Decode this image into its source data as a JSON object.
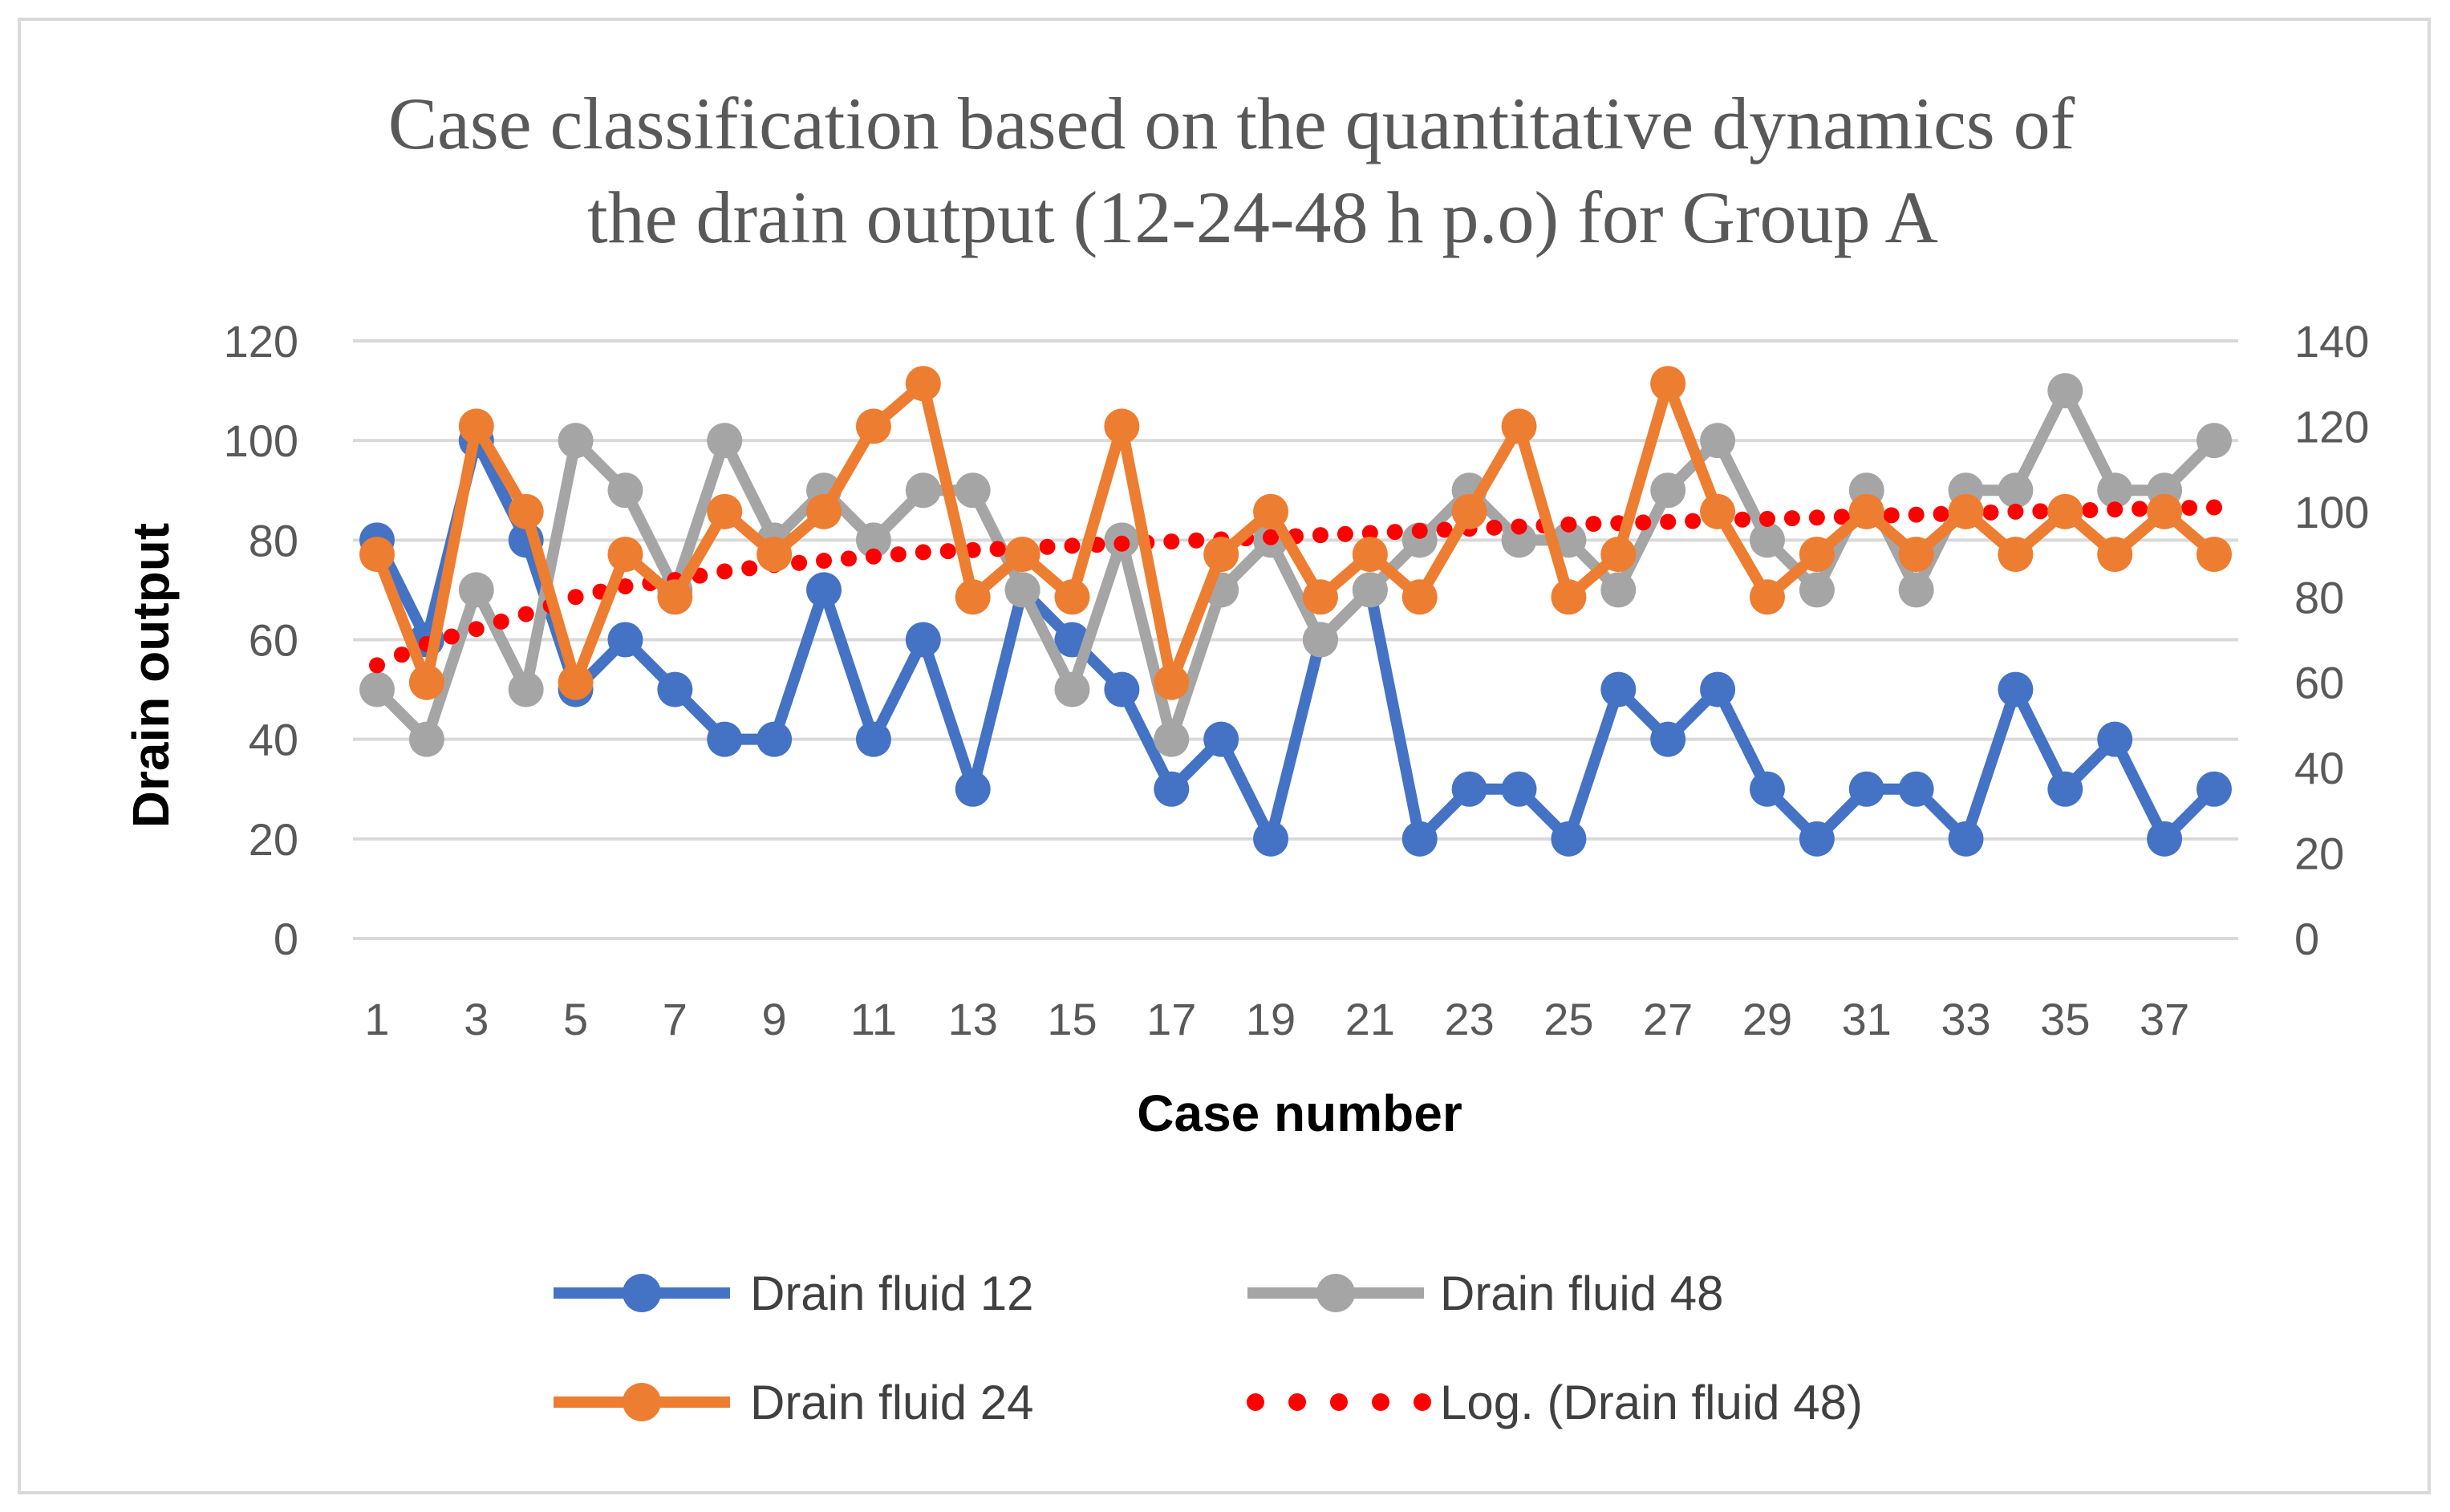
{
  "chart_data": {
    "type": "line",
    "title_lines": [
      "Case classification based on the quantitative dynamics of",
      "the drain output (12-24-48 h p.o) for Group A"
    ],
    "xlabel": "Case number",
    "ylabel": "Drain output",
    "x": [
      1,
      2,
      3,
      4,
      5,
      6,
      7,
      8,
      9,
      10,
      11,
      12,
      13,
      14,
      15,
      16,
      17,
      18,
      19,
      20,
      21,
      22,
      23,
      24,
      25,
      26,
      27,
      28,
      29,
      30,
      31,
      32,
      33,
      34,
      35,
      36,
      37,
      38
    ],
    "x_tick_labels": [
      "1",
      "3",
      "5",
      "7",
      "9",
      "11",
      "13",
      "15",
      "17",
      "19",
      "21",
      "23",
      "25",
      "27",
      "29",
      "31",
      "33",
      "35",
      "37"
    ],
    "y_left": {
      "min": 0,
      "max": 120,
      "step": 20,
      "ticks": [
        "0",
        "20",
        "40",
        "60",
        "80",
        "100",
        "120"
      ]
    },
    "y_right": {
      "min": 0,
      "max": 140,
      "step": 20,
      "ticks": [
        "0",
        "20",
        "40",
        "60",
        "80",
        "100",
        "120",
        "140"
      ]
    },
    "grid": true,
    "legend_position": "bottom",
    "series": [
      {
        "name": "Drain fluid 12",
        "axis": "left",
        "color": "#4472c4",
        "style": "line-marker",
        "values": [
          80,
          60,
          100,
          80,
          50,
          60,
          50,
          40,
          40,
          70,
          40,
          60,
          30,
          70,
          60,
          50,
          30,
          40,
          20,
          60,
          70,
          20,
          30,
          30,
          20,
          50,
          40,
          50,
          30,
          20,
          30,
          30,
          20,
          50,
          30,
          40,
          20,
          30
        ]
      },
      {
        "name": "Drain fluid 48",
        "axis": "left",
        "color": "#a5a5a5",
        "style": "line-marker",
        "values": [
          50,
          40,
          70,
          50,
          100,
          90,
          70,
          100,
          80,
          90,
          80,
          90,
          90,
          70,
          50,
          80,
          40,
          70,
          80,
          60,
          70,
          80,
          90,
          80,
          80,
          70,
          90,
          100,
          80,
          70,
          90,
          70,
          90,
          90,
          110,
          90,
          90,
          100
        ]
      },
      {
        "name": "Drain fluid 24",
        "axis": "right",
        "color": "#ed7d31",
        "style": "line-marker",
        "values": [
          90,
          60,
          120,
          100,
          60,
          90,
          80,
          100,
          90,
          100,
          120,
          130,
          80,
          90,
          80,
          120,
          60,
          90,
          100,
          80,
          90,
          80,
          100,
          120,
          80,
          90,
          130,
          100,
          80,
          90,
          100,
          90,
          100,
          90,
          100,
          90,
          100,
          90
        ]
      },
      {
        "name": "Log. (Drain fluid 48)",
        "axis": "right",
        "color": "#ff0000",
        "style": "dotted",
        "values": [
          64,
          69,
          72.5,
          76,
          80,
          82.5,
          84,
          86,
          87.5,
          88.5,
          89.5,
          90.5,
          91,
          91.5,
          92,
          92.5,
          93,
          93.5,
          94,
          94.5,
          95,
          95.5,
          96,
          96.5,
          97,
          97.3,
          97.6,
          98,
          98.3,
          98.6,
          99,
          99.3,
          99.6,
          100,
          100.2,
          100.5,
          100.8,
          101
        ]
      }
    ],
    "legend_rows": [
      [
        "Drain fluid 12",
        "Drain fluid 48"
      ],
      [
        "Drain fluid 24",
        "Log. (Drain fluid 48)"
      ]
    ]
  }
}
